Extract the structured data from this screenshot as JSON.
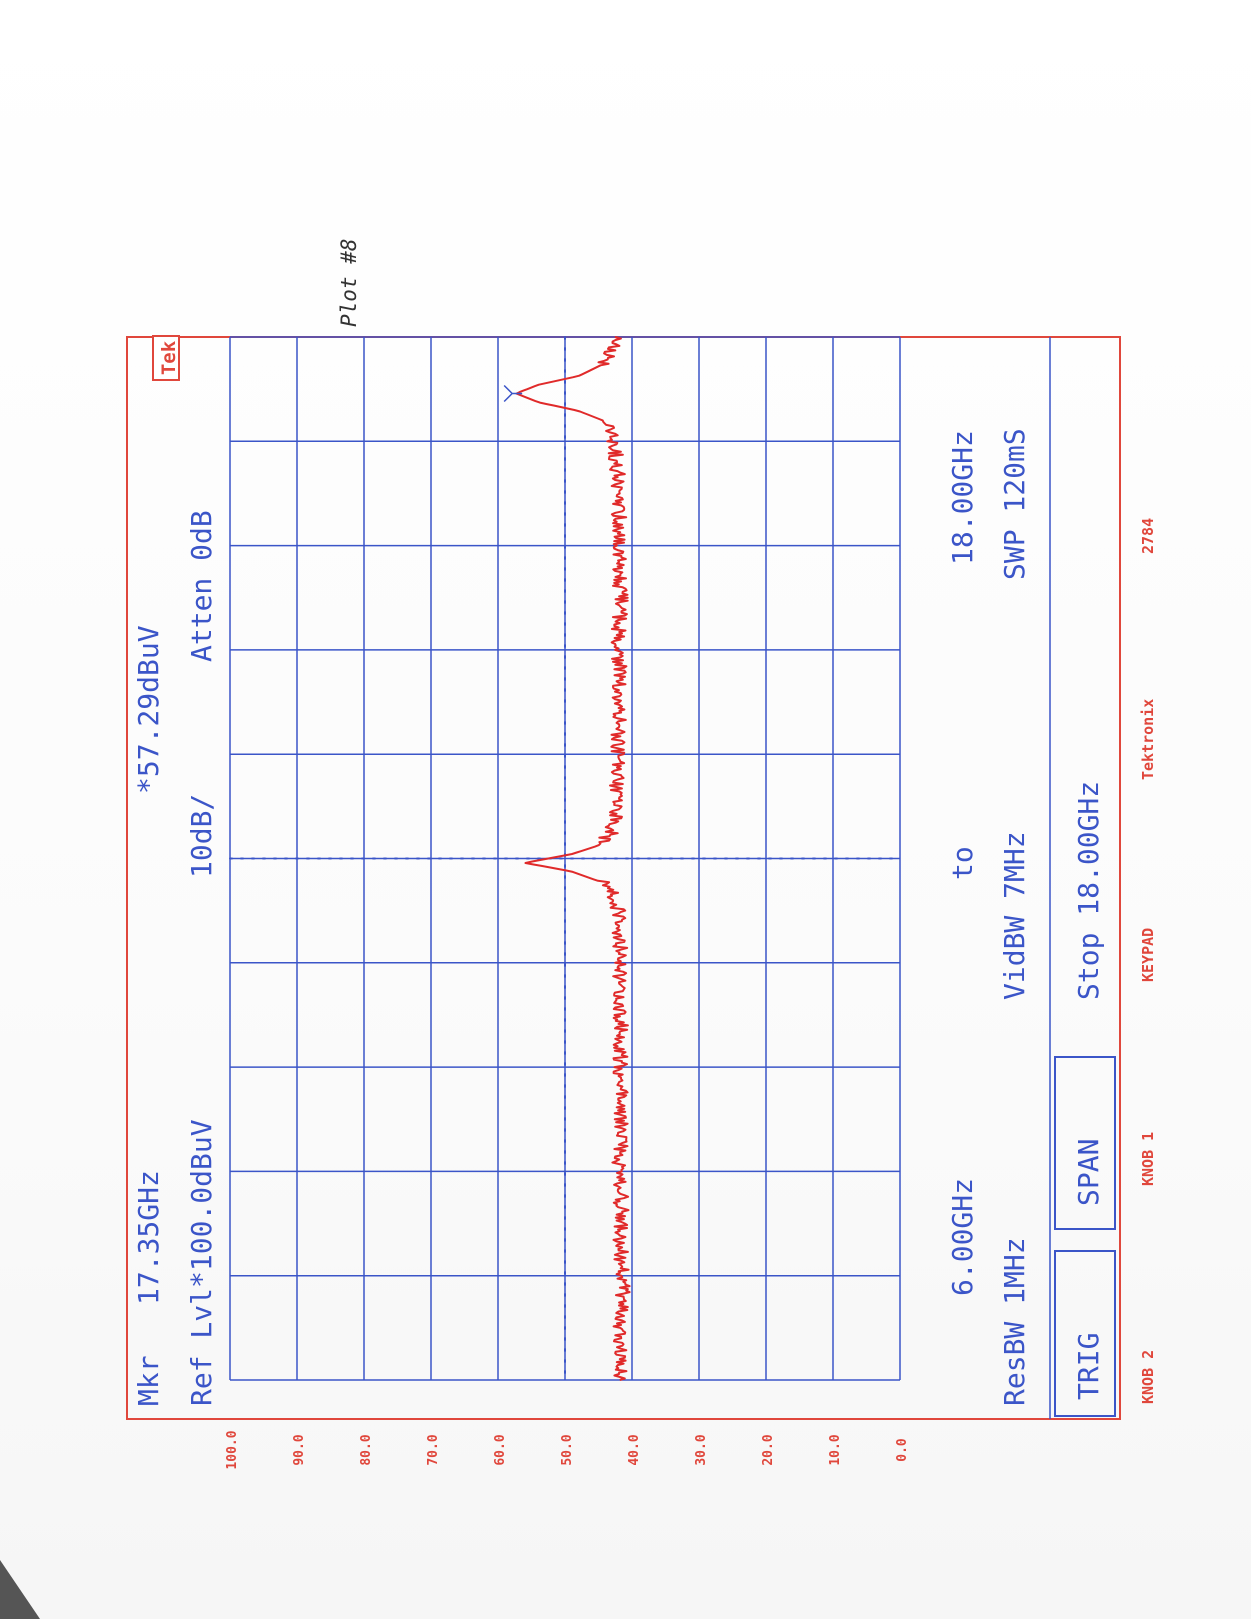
{
  "handwritten_note": "Plot #8",
  "colors": {
    "grid": "#3b55c8",
    "frame": "#e0473c",
    "trace": "#e02a2a",
    "annotation_text": "#3b55c8",
    "softkey_text": "#e0473c"
  },
  "instrument": {
    "logo": "Tek",
    "marker_label": "Mkr",
    "marker_frequency": "17.35GHz",
    "marker_amplitude": "*57.29dBuV",
    "ref_level": "Ref Lvl*100.0dBuV",
    "scale": "10dB/",
    "attenuation": "Atten 0dB",
    "start_freq": "6.00GHz",
    "to_label": "to",
    "end_freq": "18.00GHz",
    "res_bw": "ResBW 1MHz",
    "vid_bw": "VidBW 7MHz",
    "sweep": "SWP 120mS",
    "trig_button": "TRIG",
    "span_button": "SPAN",
    "stop_readout": "Stop 18.00GHz"
  },
  "softkeys": {
    "knob2": "KNOB 2",
    "knob1": "KNOB 1",
    "keypad": "KEYPAD",
    "tektronix": "Tektronix",
    "model": "2784"
  },
  "chart_data": {
    "type": "line",
    "title": "",
    "xlabel": "",
    "ylabel": "",
    "xlim": [
      6.0,
      18.0
    ],
    "ylim": [
      0.0,
      100.0
    ],
    "x_unit": "GHz",
    "y_unit": "dBuV",
    "grid": true,
    "y_ticks": [
      "100.0",
      "90.0",
      "80.0",
      "70.0",
      "60.0",
      "50.0",
      "40.0",
      "30.0",
      "20.0",
      "10.0",
      "0.0"
    ],
    "noise_floor": 41.5,
    "series": [
      {
        "name": "",
        "x": [
          6.0,
          6.5,
          7.0,
          7.5,
          8.0,
          8.5,
          9.0,
          9.5,
          10.0,
          10.5,
          11.0,
          11.5,
          11.7,
          11.85,
          11.95,
          12.05,
          12.15,
          12.3,
          12.5,
          13.0,
          13.5,
          14.0,
          14.5,
          15.0,
          15.5,
          16.0,
          16.5,
          17.0,
          17.15,
          17.25,
          17.35,
          17.45,
          17.55,
          17.7,
          17.85,
          18.0
        ],
        "y": [
          41.5,
          41.8,
          41.4,
          41.7,
          41.6,
          41.9,
          41.5,
          41.8,
          41.6,
          42.0,
          41.7,
          42.2,
          43.5,
          49.0,
          56.0,
          49.0,
          45.0,
          43.0,
          42.5,
          42.3,
          42.0,
          41.8,
          42.1,
          41.7,
          42.0,
          41.9,
          42.2,
          43.0,
          48.0,
          54.0,
          57.29,
          54.0,
          48.0,
          44.0,
          43.0,
          42.5
        ]
      }
    ],
    "marker": {
      "x": 17.35,
      "y": 57.29,
      "label": "*57.29dBuV"
    },
    "dotted_reference": {
      "level": 50.0,
      "frequency": 12.0
    }
  }
}
